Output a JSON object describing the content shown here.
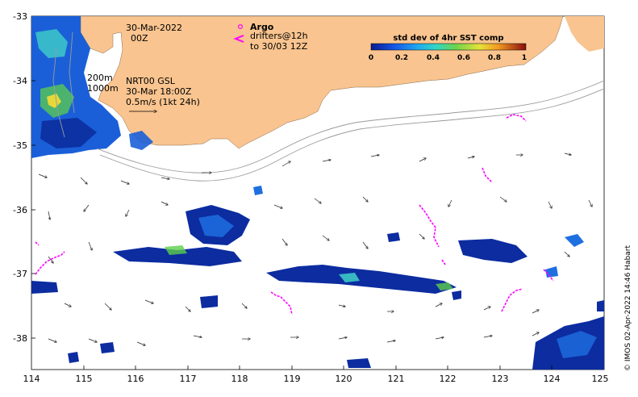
{
  "date_line1": "30-Mar-2022",
  "date_line2": "00Z",
  "depth_200": "200m",
  "depth_1000": "1000m",
  "model_line1": "NRT00 GSL",
  "model_line2": "30-Mar 18:00Z",
  "scale_label": "0.5m/s (1kt 24h)",
  "argo_label": "Argo",
  "drifters_line1": "drifters@12h",
  "drifters_line2": "to 30/03 12Z",
  "colorbar": {
    "title": "std dev of 4hr SST comp",
    "ticks": [
      "0",
      "0.2",
      "0.4",
      "0.6",
      "0.8",
      "1"
    ]
  },
  "x_ticks": [
    "114",
    "115",
    "116",
    "117",
    "118",
    "119",
    "120",
    "121",
    "122",
    "123",
    "124",
    "125"
  ],
  "y_ticks": [
    "-33",
    "-34",
    "-35",
    "-36",
    "-37",
    "-38"
  ],
  "credit": "© IMOS 02-Apr-2022 14:46 Habart",
  "colors": {
    "land": "#f9c48f",
    "drifter": "#ff00ff",
    "sst_dark": "#08208f",
    "sst_mid": "#1e6fe0",
    "sst_cyan": "#3fd0c8",
    "sst_green": "#5ccf4a",
    "sst_yellow": "#e6d83a"
  }
}
